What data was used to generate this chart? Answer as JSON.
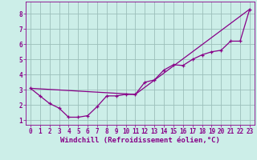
{
  "xlabel": "Windchill (Refroidissement éolien,°C)",
  "background_color": "#cceee8",
  "grid_color": "#9bbfba",
  "line_color": "#880088",
  "line1_x": [
    0,
    1,
    2,
    3,
    4,
    5,
    6,
    7,
    8,
    9,
    10,
    11,
    12,
    13,
    14,
    15,
    16,
    17,
    18,
    19,
    20,
    21,
    22,
    23
  ],
  "line1_y": [
    3.1,
    2.6,
    2.1,
    1.8,
    1.2,
    1.2,
    1.3,
    1.9,
    2.6,
    2.6,
    2.7,
    2.7,
    3.5,
    3.65,
    4.3,
    4.65,
    4.6,
    5.0,
    5.3,
    5.5,
    5.6,
    6.2,
    6.2,
    8.3
  ],
  "line2_x": [
    0,
    11,
    23
  ],
  "line2_y": [
    3.1,
    2.7,
    8.3
  ],
  "xlim": [
    -0.5,
    23.5
  ],
  "ylim": [
    0.7,
    8.8
  ],
  "xticks": [
    0,
    1,
    2,
    3,
    4,
    5,
    6,
    7,
    8,
    9,
    10,
    11,
    12,
    13,
    14,
    15,
    16,
    17,
    18,
    19,
    20,
    21,
    22,
    23
  ],
  "yticks": [
    1,
    2,
    3,
    4,
    5,
    6,
    7,
    8
  ],
  "xlabel_fontsize": 6.5,
  "tick_fontsize": 5.5
}
